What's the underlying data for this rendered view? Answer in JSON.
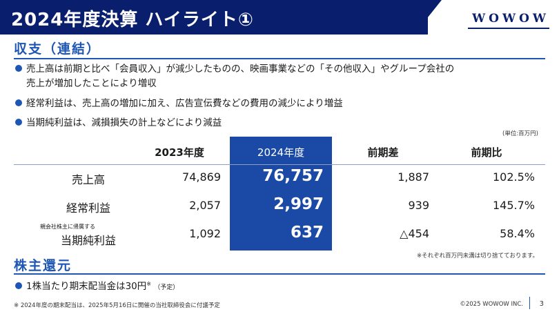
{
  "header": {
    "title": "2024年度決算 ハイライト①",
    "logo": "WOWOW"
  },
  "section1": {
    "title": "収支（連結）",
    "bullets": [
      {
        "line1": "売上高は前期と比べ「会員収入」が減少したものの、映画事業などの「その他収入」やグループ会社の",
        "line2": "売上が増加したことにより増収"
      },
      {
        "line1": "経常利益は、売上高の増加に加え、広告宣伝費などの費用の減少により増益"
      },
      {
        "line1": "当期純利益は、減損損失の計上などにより減益"
      }
    ]
  },
  "unit_note": "(単位:百万円)",
  "table": {
    "headers": [
      "2023年度",
      "2024年度",
      "前期差",
      "前期比"
    ],
    "rows": [
      {
        "label": "売上高",
        "sublabel": "",
        "v2023": "74,869",
        "v2024": "76,757",
        "diff": "1,887",
        "ratio": "102.5%"
      },
      {
        "label": "経常利益",
        "sublabel": "",
        "v2023": "2,057",
        "v2024": "2,997",
        "diff": "939",
        "ratio": "145.7%"
      },
      {
        "label": "当期純利益",
        "sublabel": "親会社株主に帰属する",
        "v2023": "1,092",
        "v2024": "637",
        "diff": "△454",
        "ratio": "58.4%"
      }
    ]
  },
  "round_note": "※それぞれ百万円未満は切り捨てております。",
  "section2": {
    "title": "株主還元",
    "bullet_main": "1株当たり期末配当金は30円",
    "bullet_sup": "※",
    "bullet_tail": "（予定）"
  },
  "footer": {
    "note": "※ 2024年度の期末配当は、2025年5月16日に開催の当社取締役会に付議予定",
    "copyright": "©2025 WOWOW INC.",
    "page": "3"
  },
  "colors": {
    "header_navy": "#0a1e6e",
    "accent_blue": "#1e56b4",
    "highlight_column": "#1a4aa6"
  }
}
